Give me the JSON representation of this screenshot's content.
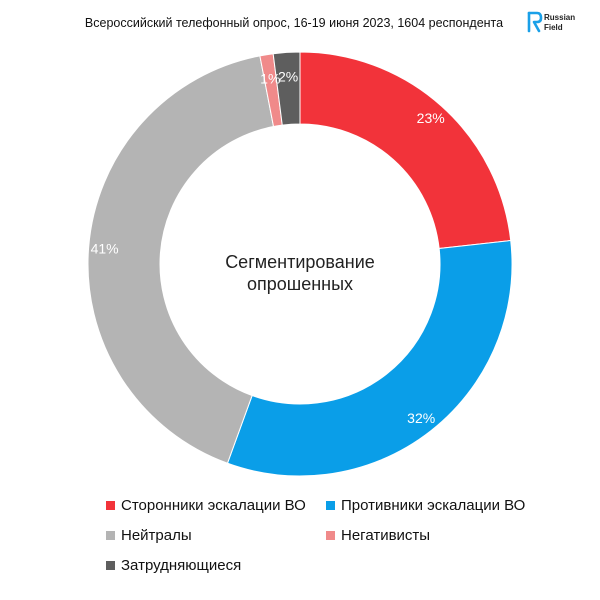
{
  "header": {
    "subtitle": "Всероссийский телефонный опрос, 16-19 июня 2023, 1604 респондента",
    "logo_text": "Russian Field"
  },
  "chart_data": {
    "type": "pie",
    "title": "Сегментирование опрошенных",
    "slices": [
      {
        "name": "Сторонники эскалации ВО",
        "value": 23,
        "label": "23%",
        "color": "#f2333a"
      },
      {
        "name": "Противники эскалации ВО",
        "value": 32,
        "label": "32%",
        "color": "#0a9ee8"
      },
      {
        "name": "Нейтралы",
        "value": 41,
        "label": "41%",
        "color": "#b4b4b4"
      },
      {
        "name": "Негативисты",
        "value": 1,
        "label": "1%",
        "color": "#f08a8a"
      },
      {
        "name": "Затрудняющиеся",
        "value": 2,
        "label": "2%",
        "color": "#5e5e5e"
      }
    ],
    "legend_position": "bottom"
  }
}
